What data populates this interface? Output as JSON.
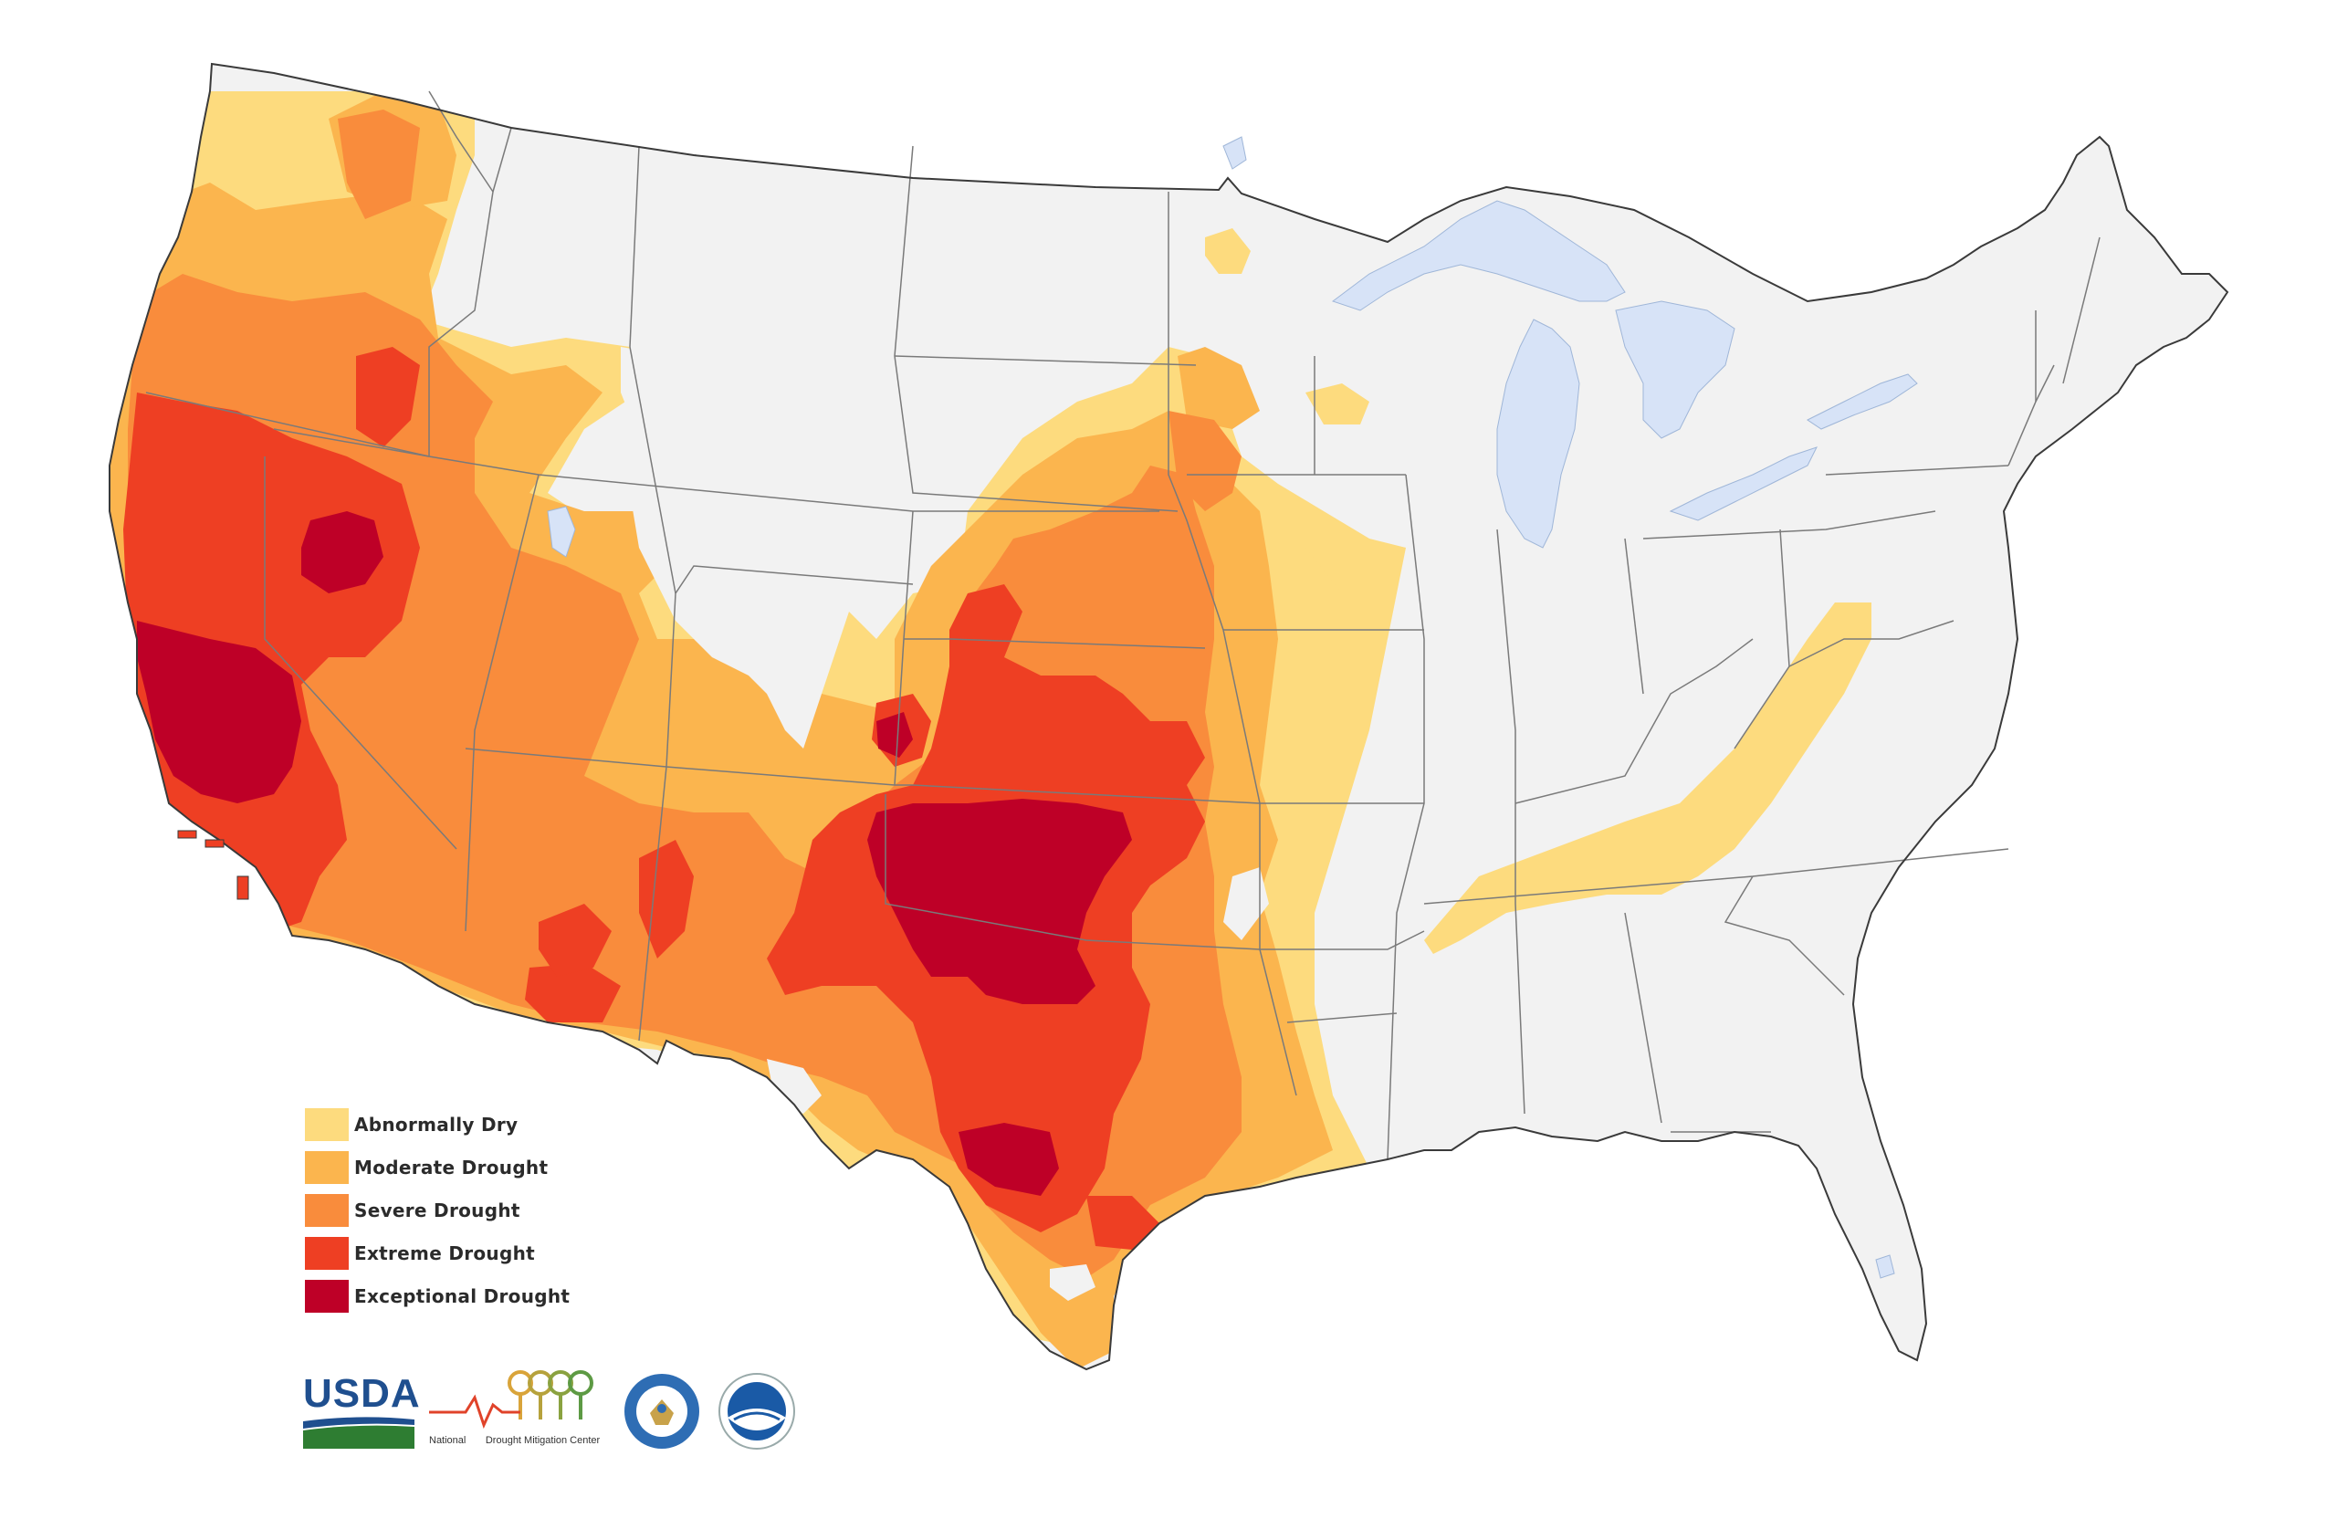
{
  "legend": {
    "items": [
      {
        "label": "Abnormally Dry",
        "color": "#FDDB7E"
      },
      {
        "label": "Moderate Drought",
        "color": "#FBB54E"
      },
      {
        "label": "Severe Drought",
        "color": "#F98C3C"
      },
      {
        "label": "Extreme Drought",
        "color": "#EE3F23"
      },
      {
        "label": "Exceptional Drought",
        "color": "#BE0027"
      }
    ]
  },
  "logos": {
    "usda": {
      "text": "USDA"
    },
    "ndmc": {
      "line1": "National",
      "line2": "Drought Mitigation Center"
    },
    "noaa": {
      "text": "NOAA"
    },
    "doc_seal": {
      "text": "DEPARTMENT OF COMMERCE"
    }
  },
  "colors": {
    "land": "#F2F2F2",
    "water": "#D7E3F7",
    "border": "#6b6b6b",
    "coast": "#3a3a3a"
  }
}
